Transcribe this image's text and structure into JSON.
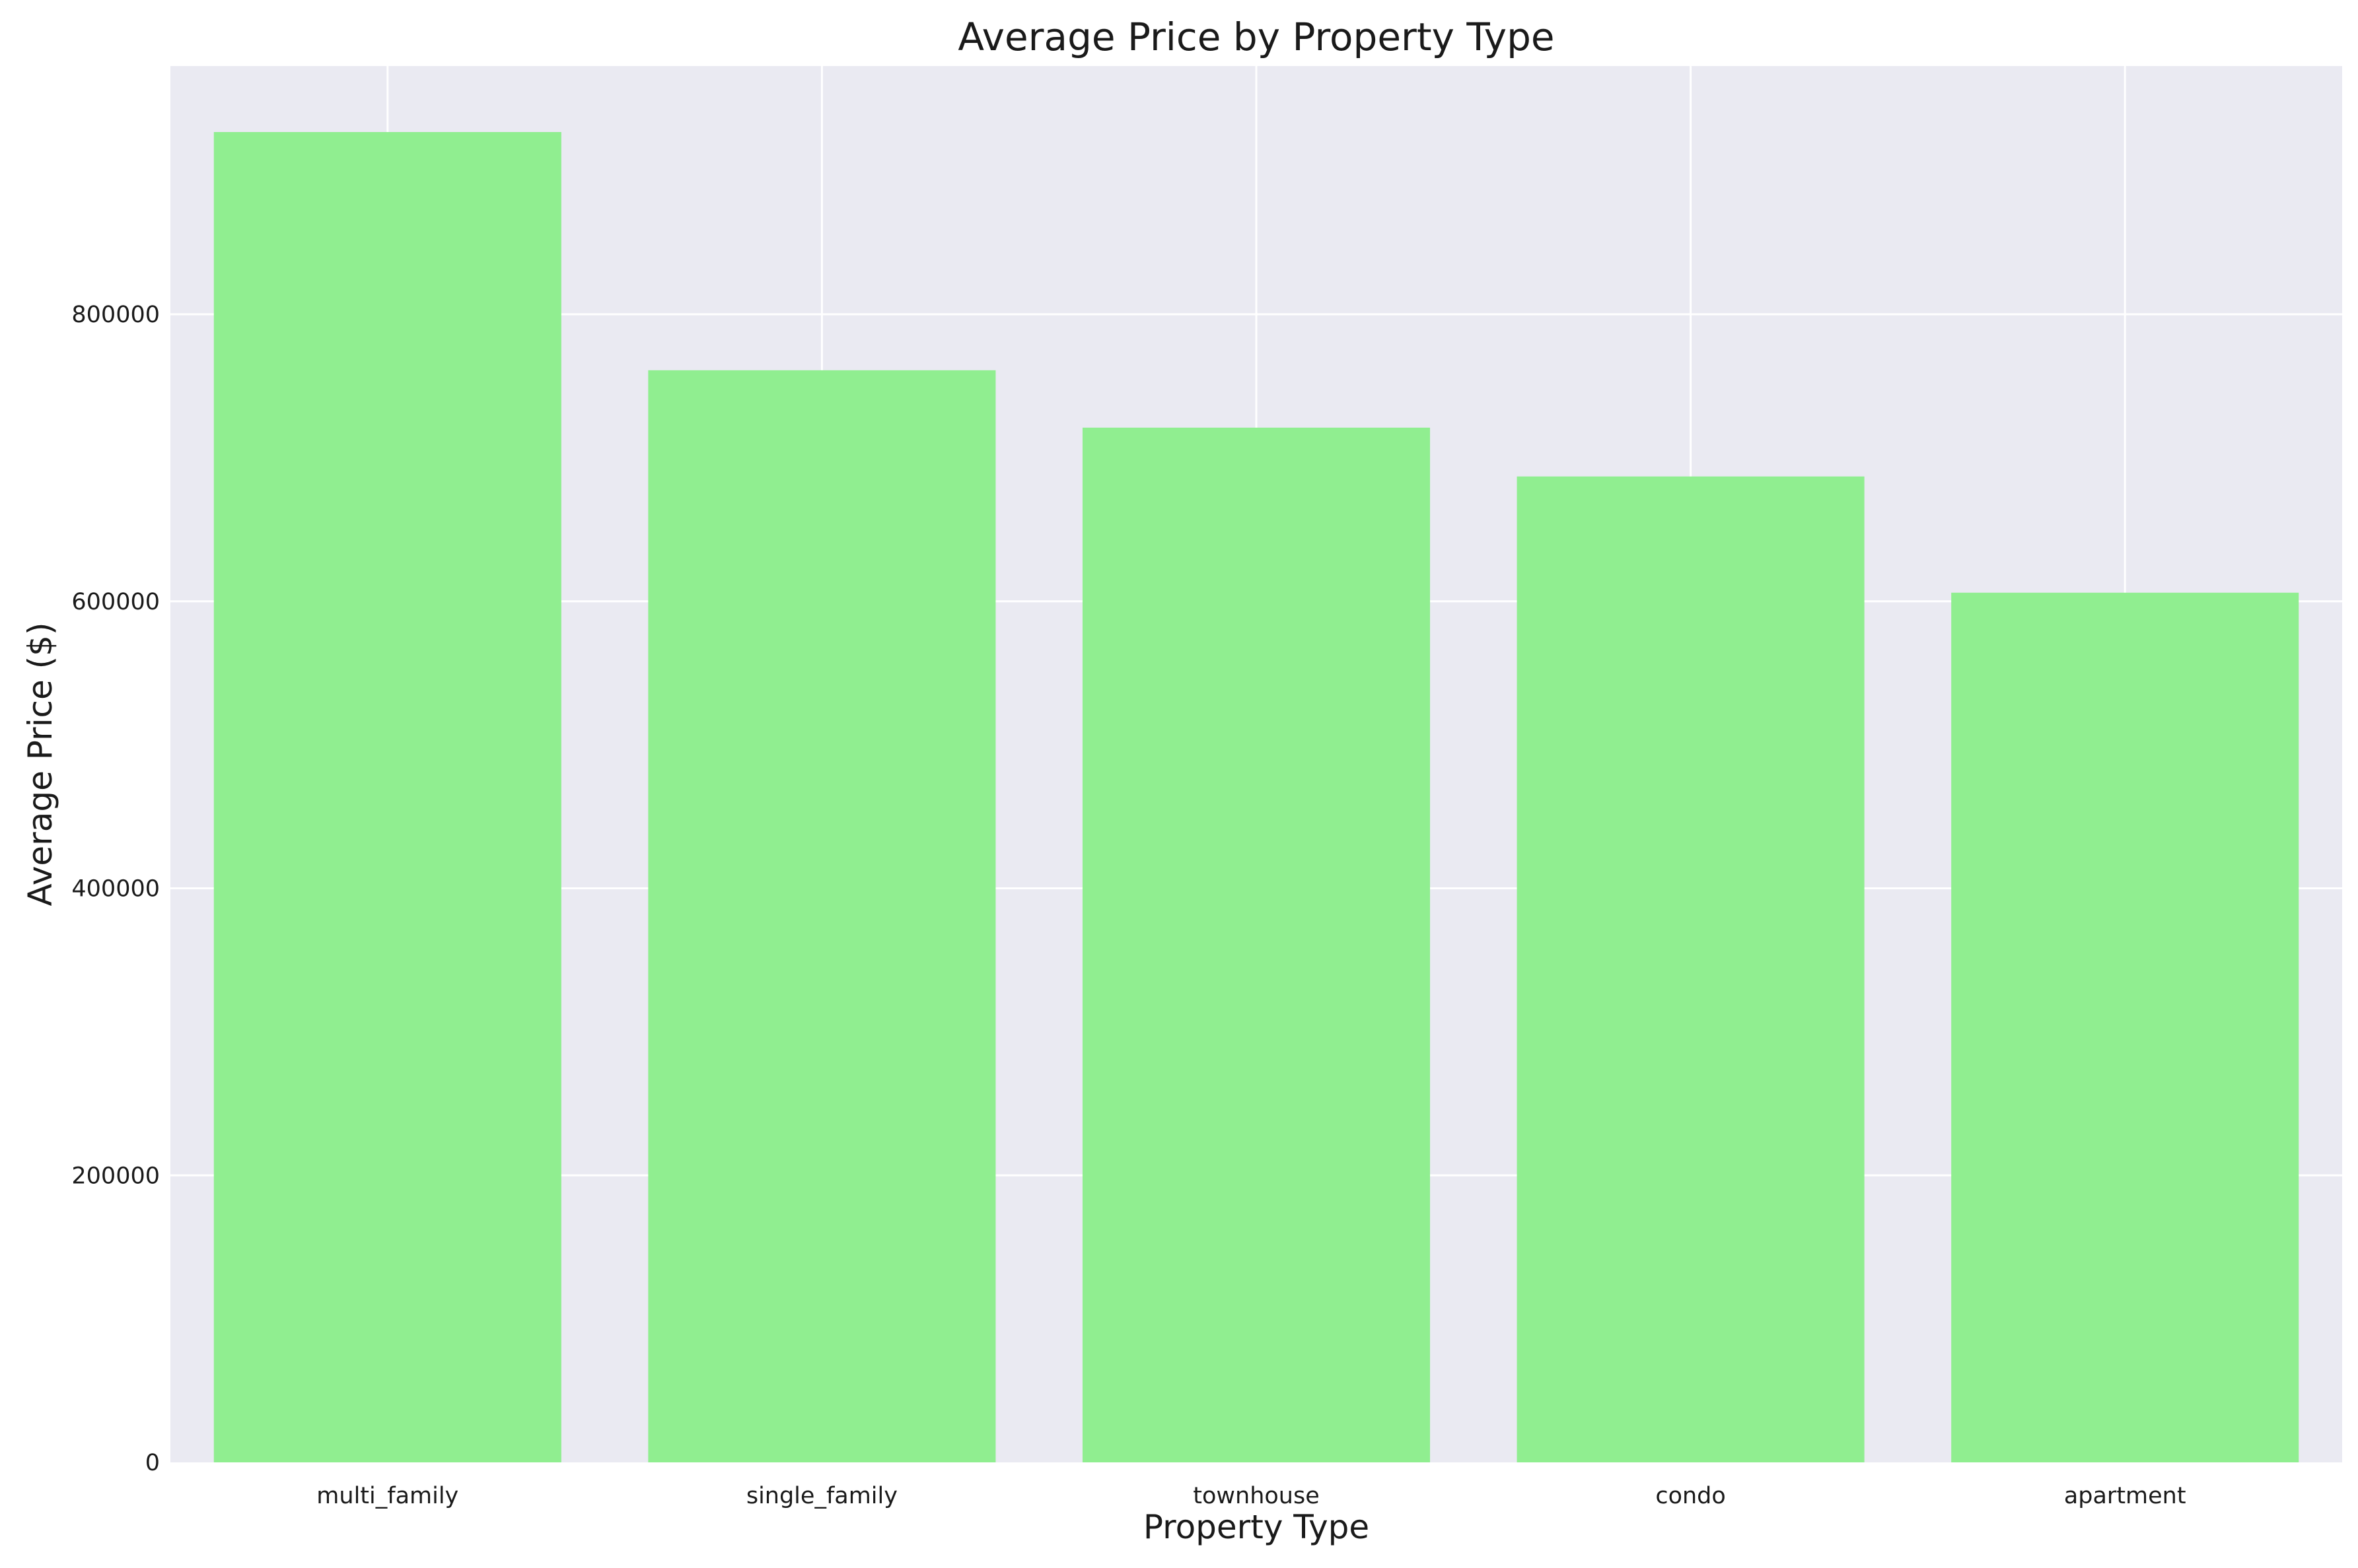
{
  "chart_data": {
    "type": "bar",
    "title": "Average Price by Property Type",
    "xlabel": "Property Type",
    "ylabel": "Average Price ($)",
    "categories": [
      "multi_family",
      "single_family",
      "townhouse",
      "condo",
      "apartment"
    ],
    "values": [
      927000,
      761000,
      721000,
      687000,
      606000
    ],
    "ylim": [
      0,
      973000
    ],
    "yticks": [
      0,
      200000,
      400000,
      600000,
      800000
    ],
    "ytick_labels": [
      "0",
      "200000",
      "400000",
      "600000",
      "800000"
    ],
    "grid": true,
    "colors": {
      "bar": "#90ee90",
      "plot_background": "#eaeaf2",
      "grid": "#ffffff",
      "text": "#1a1a1a"
    }
  }
}
